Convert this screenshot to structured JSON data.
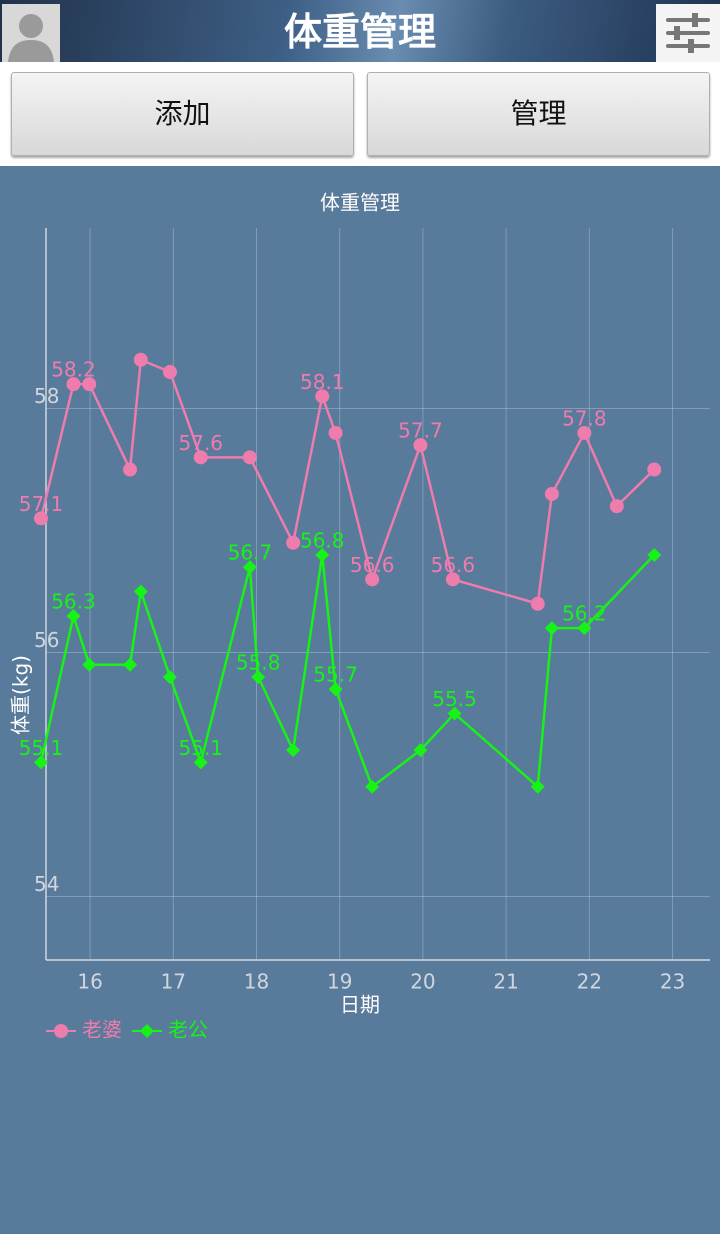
{
  "header": {
    "title": "体重管理"
  },
  "buttons": [
    "添加",
    "管理"
  ],
  "chart_data": {
    "type": "line",
    "title": "体重管理",
    "x_label": "日期",
    "y_label": "体重(kg)",
    "xlim": [
      15.47,
      23.45
    ],
    "ylim": [
      53.48,
      59.48
    ],
    "xticks": [
      16,
      17,
      18,
      19,
      20,
      21,
      22,
      23
    ],
    "yticks": [
      54,
      56,
      58
    ],
    "grid": true,
    "legend": "bottom-left",
    "series": [
      {
        "name": "老婆",
        "color": "#ee7cad",
        "marker": "circle",
        "x": [
          15.41,
          15.8,
          15.99,
          16.48,
          16.61,
          16.96,
          17.33,
          17.92,
          18.44,
          18.79,
          18.95,
          19.39,
          19.97,
          20.36,
          21.38,
          21.55,
          21.94,
          22.33,
          22.78
        ],
        "values": [
          57.1,
          58.2,
          58.2,
          57.5,
          58.4,
          58.3,
          57.6,
          57.6,
          56.9,
          58.1,
          57.8,
          56.6,
          57.7,
          56.6,
          56.4,
          57.3,
          57.8,
          57.2,
          57.5
        ],
        "value_labels": [
          "57.1",
          "58.2",
          null,
          null,
          null,
          null,
          "57.6",
          null,
          null,
          "58.1",
          null,
          "56.6",
          "57.7",
          "56.6",
          null,
          null,
          "57.8",
          null,
          null
        ]
      },
      {
        "name": "老公",
        "color": "#17f217",
        "marker": "diamond",
        "x": [
          15.41,
          15.8,
          15.99,
          16.48,
          16.61,
          16.96,
          17.33,
          17.92,
          18.02,
          18.44,
          18.79,
          18.95,
          19.39,
          19.97,
          20.38,
          21.38,
          21.55,
          21.94,
          22.78
        ],
        "values": [
          55.1,
          56.3,
          55.9,
          55.9,
          56.5,
          55.8,
          55.1,
          56.7,
          55.8,
          55.2,
          56.8,
          55.7,
          54.9,
          55.2,
          55.5,
          54.9,
          56.2,
          56.2,
          56.8
        ],
        "value_labels": [
          "55.1",
          "56.3",
          null,
          null,
          null,
          null,
          "55.1",
          "56.7",
          "55.8",
          null,
          "56.8",
          "55.7",
          null,
          null,
          "55.5",
          null,
          null,
          "56.2",
          null
        ]
      }
    ]
  }
}
